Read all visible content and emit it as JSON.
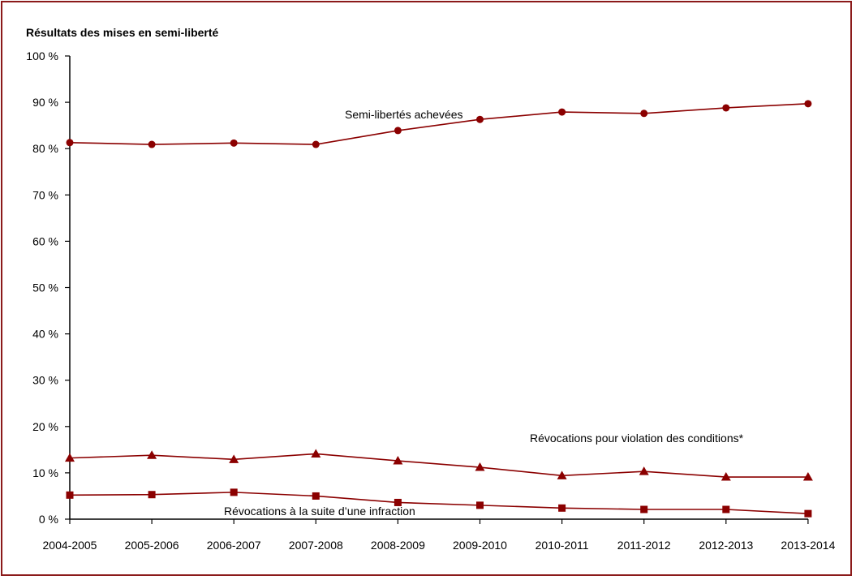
{
  "chart_data": {
    "type": "line",
    "title": "Résultats des mises en semi-liberté",
    "xlabel": "",
    "ylabel": "",
    "ylim": [
      0,
      100
    ],
    "y_ticks": [
      "0 %",
      "10 %",
      "20 %",
      "30 %",
      "40 %",
      "50 %",
      "60 %",
      "70 %",
      "80 %",
      "90 %",
      "100 %"
    ],
    "categories": [
      "2004-2005",
      "2005-2006",
      "2006-2007",
      "2007-2008",
      "2008-2009",
      "2009-2010",
      "2010-2011",
      "2011-2012",
      "2012-2013",
      "2013-2014"
    ],
    "grid": false,
    "series": [
      {
        "name": "Semi-libertés achevées",
        "marker": "circle",
        "color": "#8b0000",
        "values": [
          81.3,
          80.9,
          81.2,
          80.9,
          83.9,
          86.3,
          87.9,
          87.6,
          88.8,
          89.7
        ]
      },
      {
        "name": "Révocations pour violation des conditions*",
        "marker": "triangle",
        "color": "#8b0000",
        "values": [
          13.2,
          13.8,
          12.9,
          14.1,
          12.6,
          11.2,
          9.4,
          10.3,
          9.1,
          9.1
        ]
      },
      {
        "name": "Révocations à la suite d’une infraction",
        "marker": "square",
        "color": "#8b0000",
        "values": [
          5.2,
          5.3,
          5.8,
          5.0,
          3.6,
          3.0,
          2.4,
          2.1,
          2.1,
          1.2
        ]
      }
    ]
  }
}
